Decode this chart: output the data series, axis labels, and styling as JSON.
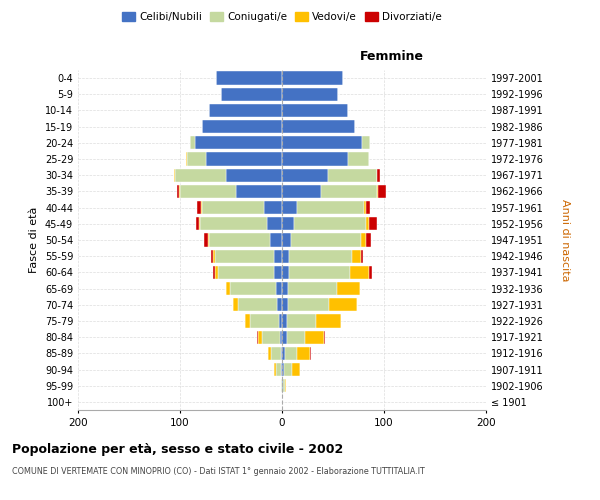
{
  "age_groups": [
    "100+",
    "95-99",
    "90-94",
    "85-89",
    "80-84",
    "75-79",
    "70-74",
    "65-69",
    "60-64",
    "55-59",
    "50-54",
    "45-49",
    "40-44",
    "35-39",
    "30-34",
    "25-29",
    "20-24",
    "15-19",
    "10-14",
    "5-9",
    "0-4"
  ],
  "birth_years": [
    "≤ 1901",
    "1902-1906",
    "1907-1911",
    "1912-1916",
    "1917-1921",
    "1922-1926",
    "1927-1931",
    "1932-1936",
    "1937-1941",
    "1942-1946",
    "1947-1951",
    "1952-1956",
    "1957-1961",
    "1962-1966",
    "1967-1971",
    "1972-1976",
    "1977-1981",
    "1982-1986",
    "1987-1991",
    "1992-1996",
    "1997-2001"
  ],
  "male_celibi": [
    0,
    0,
    1,
    1,
    2,
    3,
    5,
    6,
    8,
    8,
    12,
    15,
    18,
    45,
    55,
    75,
    85,
    78,
    72,
    60,
    65
  ],
  "male_coniugati": [
    0,
    1,
    5,
    10,
    18,
    28,
    38,
    45,
    55,
    58,
    60,
    65,
    60,
    55,
    50,
    18,
    5,
    0,
    0,
    0,
    0
  ],
  "male_vedovi": [
    0,
    0,
    2,
    3,
    4,
    5,
    5,
    4,
    3,
    2,
    1,
    1,
    1,
    1,
    1,
    1,
    0,
    0,
    0,
    0,
    0
  ],
  "male_divorziati": [
    0,
    0,
    0,
    0,
    1,
    0,
    0,
    0,
    2,
    2,
    3,
    3,
    4,
    2,
    0,
    0,
    0,
    0,
    0,
    0,
    0
  ],
  "female_celibi": [
    0,
    1,
    2,
    3,
    5,
    5,
    6,
    6,
    7,
    7,
    9,
    12,
    15,
    38,
    45,
    65,
    78,
    72,
    65,
    55,
    60
  ],
  "female_coniugati": [
    0,
    2,
    8,
    12,
    18,
    28,
    40,
    48,
    60,
    62,
    68,
    70,
    65,
    55,
    48,
    20,
    8,
    0,
    0,
    0,
    0
  ],
  "female_vedovi": [
    0,
    1,
    8,
    12,
    18,
    25,
    28,
    22,
    18,
    8,
    5,
    3,
    2,
    1,
    0,
    0,
    0,
    0,
    0,
    0,
    0
  ],
  "female_divorziati": [
    0,
    0,
    0,
    1,
    1,
    0,
    0,
    0,
    3,
    2,
    5,
    8,
    4,
    8,
    3,
    0,
    0,
    0,
    0,
    0,
    0
  ],
  "color_celibi": "#4472c4",
  "color_coniugati": "#c5d9a0",
  "color_vedovi": "#ffc000",
  "color_divorziati": "#cc0000",
  "title": "Popolazione per età, sesso e stato civile - 2002",
  "subtitle": "COMUNE DI VERTEMATE CON MINOPRIO (CO) - Dati ISTAT 1° gennaio 2002 - Elaborazione TUTTITALIA.IT",
  "xlabel_right": "Femmine",
  "ylabel_left": "Fasce di età",
  "ylabel_right": "Anni di nascita",
  "xlim": 200,
  "legend_labels": [
    "Celibi/Nubili",
    "Coniugati/e",
    "Vedovi/e",
    "Divorziati/e"
  ],
  "bg_color": "#ffffff",
  "grid_color": "#cccccc"
}
